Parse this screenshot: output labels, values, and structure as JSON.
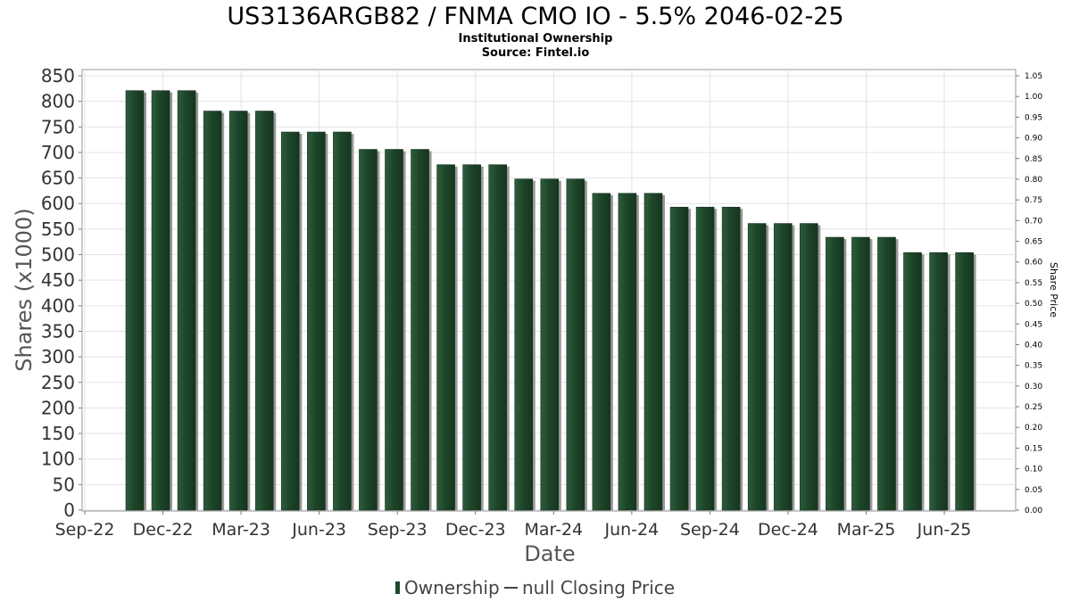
{
  "chart_data": {
    "type": "bar",
    "title": "US3136ARGB82 / FNMA CMO IO - 5.5% 2046-02-25",
    "subtitle": "Institutional Ownership",
    "source": "Source: Fintel.io",
    "xlabel": "Date",
    "ylabel": "Shares (x1000)",
    "y2label": "Share Price",
    "ylim": [
      0,
      850
    ],
    "y2lim": [
      0,
      1.05
    ],
    "yticks": [
      "0",
      "50",
      "100",
      "150",
      "200",
      "250",
      "300",
      "350",
      "400",
      "450",
      "500",
      "550",
      "600",
      "650",
      "700",
      "750",
      "800",
      "850"
    ],
    "y2ticks": [
      "0.00",
      "0.05",
      "0.10",
      "0.15",
      "0.20",
      "0.25",
      "0.30",
      "0.35",
      "0.40",
      "0.45",
      "0.50",
      "0.55",
      "0.60",
      "0.65",
      "0.70",
      "0.75",
      "0.80",
      "0.85",
      "0.90",
      "0.95",
      "1.00",
      "1.05"
    ],
    "xticks": [
      "Sep-22",
      "Dec-22",
      "Mar-23",
      "Jun-23",
      "Sep-23",
      "Dec-23",
      "Mar-24",
      "Jun-24",
      "Sep-24",
      "Dec-24",
      "Mar-25",
      "Jun-25"
    ],
    "grid": true,
    "legend_position": "bottom",
    "bar_color": "#1f4a2c",
    "series": [
      {
        "name": "Ownership",
        "values": [
          821,
          821,
          821,
          781,
          781,
          781,
          740,
          740,
          740,
          706,
          706,
          706,
          676,
          676,
          676,
          648,
          648,
          648,
          620,
          620,
          620,
          593,
          593,
          593,
          561,
          561,
          561,
          534,
          534,
          534,
          504,
          504,
          504
        ]
      },
      {
        "name": "null Closing Price",
        "values": []
      }
    ]
  }
}
